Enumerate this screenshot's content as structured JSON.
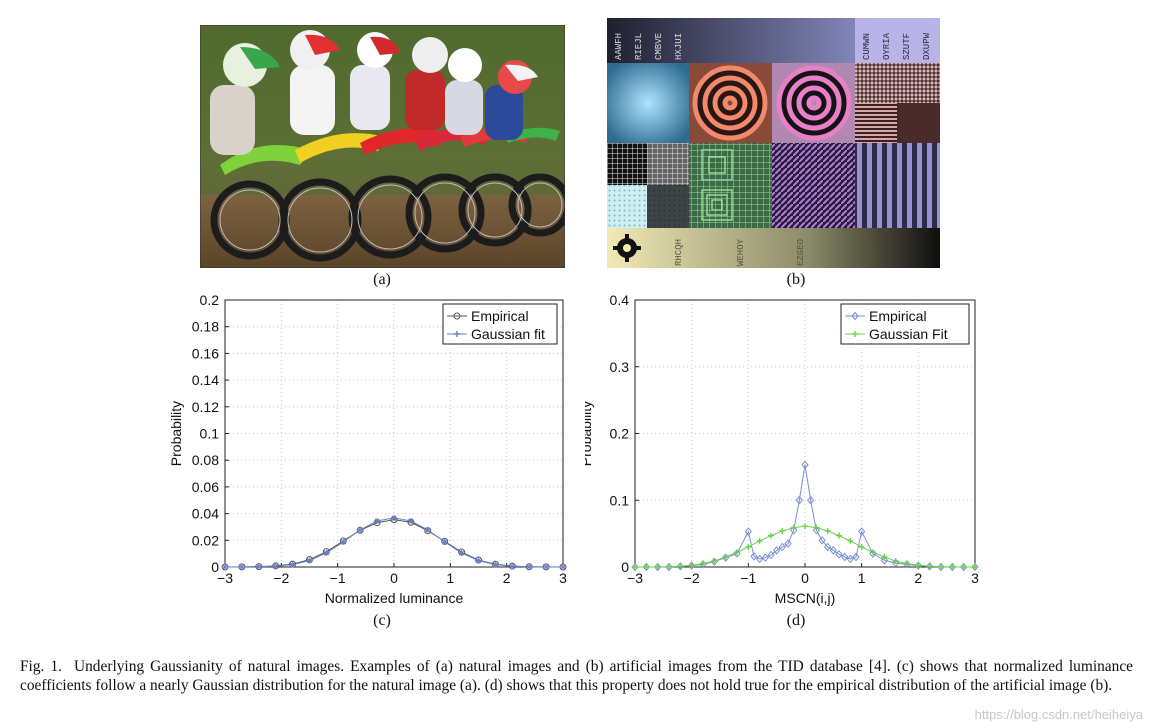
{
  "panels": {
    "a_label": "(a)",
    "b_label": "(b)",
    "c_label": "(c)",
    "d_label": "(d)"
  },
  "artificial_image": {
    "top_texts": [
      "AAWFH",
      "RIEJL",
      "CMBVE",
      "HXJUI"
    ],
    "top_right_texts": [
      "CUMWN",
      "OYRIA",
      "SZUTF",
      "DXUPW"
    ],
    "bottom_texts": [
      "RHCQH",
      "WEHOY",
      "EZGEO",
      "MHEPT"
    ]
  },
  "chart_data": [
    {
      "type": "line",
      "xlabel": "Normalized luminance",
      "ylabel": "Probability",
      "xlim": [
        -3,
        3
      ],
      "ylim": [
        0,
        0.2
      ],
      "xticks": [
        "−3",
        "−2",
        "−1",
        "0",
        "1",
        "2",
        "3"
      ],
      "yticks": [
        "0",
        "0.02",
        "0.04",
        "0.06",
        "0.08",
        "0.1",
        "0.12",
        "0.14",
        "0.16",
        "0.18",
        "0.2"
      ],
      "grid": true,
      "legend_position": "top-right",
      "series": [
        {
          "name": "Empirical",
          "marker": "circle",
          "color": "#555555",
          "x": [
            -3,
            -2.7,
            -2.4,
            -2.1,
            -1.8,
            -1.5,
            -1.2,
            -0.9,
            -0.6,
            -0.3,
            0,
            0.3,
            0.6,
            0.9,
            1.2,
            1.5,
            1.8,
            2.1,
            2.4,
            2.7,
            3
          ],
          "values": [
            0,
            0.0001,
            0.0003,
            0.0008,
            0.0022,
            0.0055,
            0.0115,
            0.0195,
            0.0275,
            0.0332,
            0.0355,
            0.0335,
            0.0272,
            0.0192,
            0.0112,
            0.0052,
            0.0021,
            0.0007,
            0.0002,
            0.0001,
            0
          ]
        },
        {
          "name": "Gaussian fit",
          "marker": "star",
          "color": "#6a7fc9",
          "x": [
            -3,
            -2.7,
            -2.4,
            -2.1,
            -1.8,
            -1.5,
            -1.2,
            -0.9,
            -0.6,
            -0.3,
            0,
            0.3,
            0.6,
            0.9,
            1.2,
            1.5,
            1.8,
            2.1,
            2.4,
            2.7,
            3
          ],
          "values": [
            0,
            0,
            0.0002,
            0.0006,
            0.0018,
            0.0048,
            0.0105,
            0.0188,
            0.0278,
            0.0345,
            0.0368,
            0.0345,
            0.0278,
            0.0188,
            0.0105,
            0.0048,
            0.0018,
            0.0006,
            0.0002,
            0,
            0
          ]
        }
      ]
    },
    {
      "type": "line",
      "xlabel": "MSCN(i,j)",
      "ylabel": "Probability",
      "xlim": [
        -3,
        3
      ],
      "ylim": [
        0,
        0.4
      ],
      "xticks": [
        "−3",
        "−2",
        "−1",
        "0",
        "1",
        "2",
        "3"
      ],
      "yticks": [
        "0",
        "0.1",
        "0.2",
        "0.3",
        "0.4"
      ],
      "grid": true,
      "legend_position": "top-right",
      "series": [
        {
          "name": "Empirical",
          "marker": "diamond",
          "color": "#7b8fd6",
          "x": [
            -3,
            -2.8,
            -2.6,
            -2.4,
            -2.2,
            -2,
            -1.8,
            -1.6,
            -1.4,
            -1.2,
            -1,
            -0.9,
            -0.8,
            -0.7,
            -0.6,
            -0.5,
            -0.4,
            -0.3,
            -0.2,
            -0.1,
            0,
            0.1,
            0.2,
            0.3,
            0.4,
            0.5,
            0.6,
            0.7,
            0.8,
            0.9,
            1,
            1.2,
            1.4,
            1.6,
            1.8,
            2,
            2.2,
            2.4,
            2.6,
            2.8,
            3
          ],
          "values": [
            0,
            0,
            0,
            0,
            0.001,
            0.002,
            0.004,
            0.008,
            0.014,
            0.02,
            0.053,
            0.016,
            0.012,
            0.014,
            0.018,
            0.025,
            0.03,
            0.035,
            0.055,
            0.1,
            0.153,
            0.1,
            0.055,
            0.04,
            0.03,
            0.025,
            0.019,
            0.015,
            0.012,
            0.015,
            0.053,
            0.02,
            0.01,
            0.006,
            0.004,
            0.002,
            0.001,
            0,
            0,
            0,
            0
          ]
        },
        {
          "name": "Gaussian Fit",
          "marker": "plus",
          "color": "#6ccf4a",
          "x": [
            -3,
            -2.8,
            -2.6,
            -2.4,
            -2.2,
            -2,
            -1.8,
            -1.6,
            -1.4,
            -1.2,
            -1,
            -0.8,
            -0.6,
            -0.4,
            -0.2,
            0,
            0.2,
            0.4,
            0.6,
            0.8,
            1,
            1.2,
            1.4,
            1.6,
            1.8,
            2,
            2.2,
            2.4,
            2.6,
            2.8,
            3
          ],
          "values": [
            0,
            0,
            0,
            0.0005,
            0.0012,
            0.0025,
            0.005,
            0.009,
            0.015,
            0.022,
            0.03,
            0.039,
            0.047,
            0.054,
            0.059,
            0.061,
            0.059,
            0.054,
            0.047,
            0.039,
            0.03,
            0.022,
            0.015,
            0.009,
            0.005,
            0.0025,
            0.0012,
            0.0005,
            0,
            0,
            0
          ]
        }
      ]
    }
  ],
  "caption": {
    "fig_label": "Fig. 1.",
    "text": "Underlying Gaussianity of natural images. Examples of (a) natural images and (b) artificial images from the TID database [4]. (c) shows that normalized luminance coefficients follow a nearly Gaussian distribution for the natural image (a). (d) shows that this property does not hold true for the empirical distribution of the artificial image (b)."
  },
  "watermark": "https://blog.csdn.net/heiheiya"
}
